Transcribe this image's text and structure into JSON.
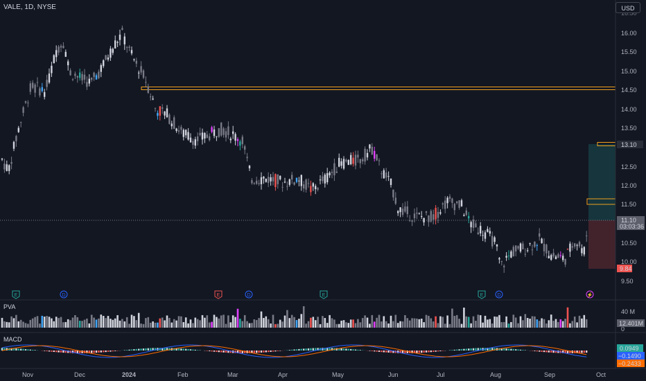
{
  "symbol": {
    "title": "VALE, 1D, NYSE"
  },
  "currency_button": "USD",
  "colors": {
    "background": "#131722",
    "bull": "#d1d4dc",
    "bear": "#787b86",
    "bull_vector": "#26a69a",
    "bear_vector": "#ef5350",
    "climax_up": "#42a5f5",
    "climax_down": "#e040fb",
    "level_line": "#f0a01e",
    "profit_zone": "#26a69a",
    "loss_zone": "#ef5350",
    "macd_line": "#2962ff",
    "signal_line": "#ff6d00"
  },
  "price_axis": {
    "ticks": [
      "16.00",
      "15.50",
      "15.00",
      "14.50",
      "14.00",
      "13.50",
      "13.00",
      "12.50",
      "12.00",
      "11.50",
      "11.00",
      "10.50",
      "10.00",
      "9.50"
    ],
    "top_partial": "16.50",
    "current_price": "11.10",
    "countdown": "03:03:36",
    "target_label": "13.10",
    "stop_label": "9.84"
  },
  "time_axis": [
    "Nov",
    "Dec",
    "2024",
    "Feb",
    "Mar",
    "Apr",
    "May",
    "Jun",
    "Jul",
    "Aug",
    "Sep",
    "Oct"
  ],
  "events": [
    {
      "type": "E",
      "name": "earnings"
    },
    {
      "type": "D",
      "name": "dividend"
    },
    {
      "type": "E",
      "name": "earnings"
    },
    {
      "type": "D",
      "name": "dividend"
    },
    {
      "type": "E",
      "name": "earnings"
    },
    {
      "type": "E",
      "name": "earnings"
    },
    {
      "type": "D",
      "name": "dividend"
    },
    {
      "type": "⚡",
      "name": "lightning"
    }
  ],
  "pva": {
    "title": "PVA",
    "axis_label": "40 M",
    "zero_label": "0",
    "value_badge": "12.401M"
  },
  "macd": {
    "title": "MACD",
    "histogram_value": "0.0949",
    "macd_value": "−0.1490",
    "signal_value": "−0.2433"
  },
  "chart_data": {
    "type": "candlestick",
    "title": "VALE, 1D, NYSE",
    "ylim": [
      9.5,
      16.5
    ],
    "x": [
      "Oct 2023",
      "Nov",
      "Dec",
      "2024 Jan",
      "Feb",
      "Mar",
      "Apr",
      "May",
      "Jun",
      "Jul",
      "Aug",
      "Sep"
    ],
    "close_approx": [
      12.5,
      14.6,
      15.9,
      15.2,
      13.4,
      13.5,
      12.0,
      12.7,
      11.4,
      11.5,
      10.3,
      11.1
    ],
    "horizontal_level": 14.55,
    "position": {
      "entry": 11.1,
      "target": 13.1,
      "stop": 9.84
    },
    "volume_axis_max_label": "40 M",
    "volume_last": "12.401M",
    "macd": {
      "histogram": 0.0949,
      "macd": -0.149,
      "signal": -0.2433
    }
  }
}
